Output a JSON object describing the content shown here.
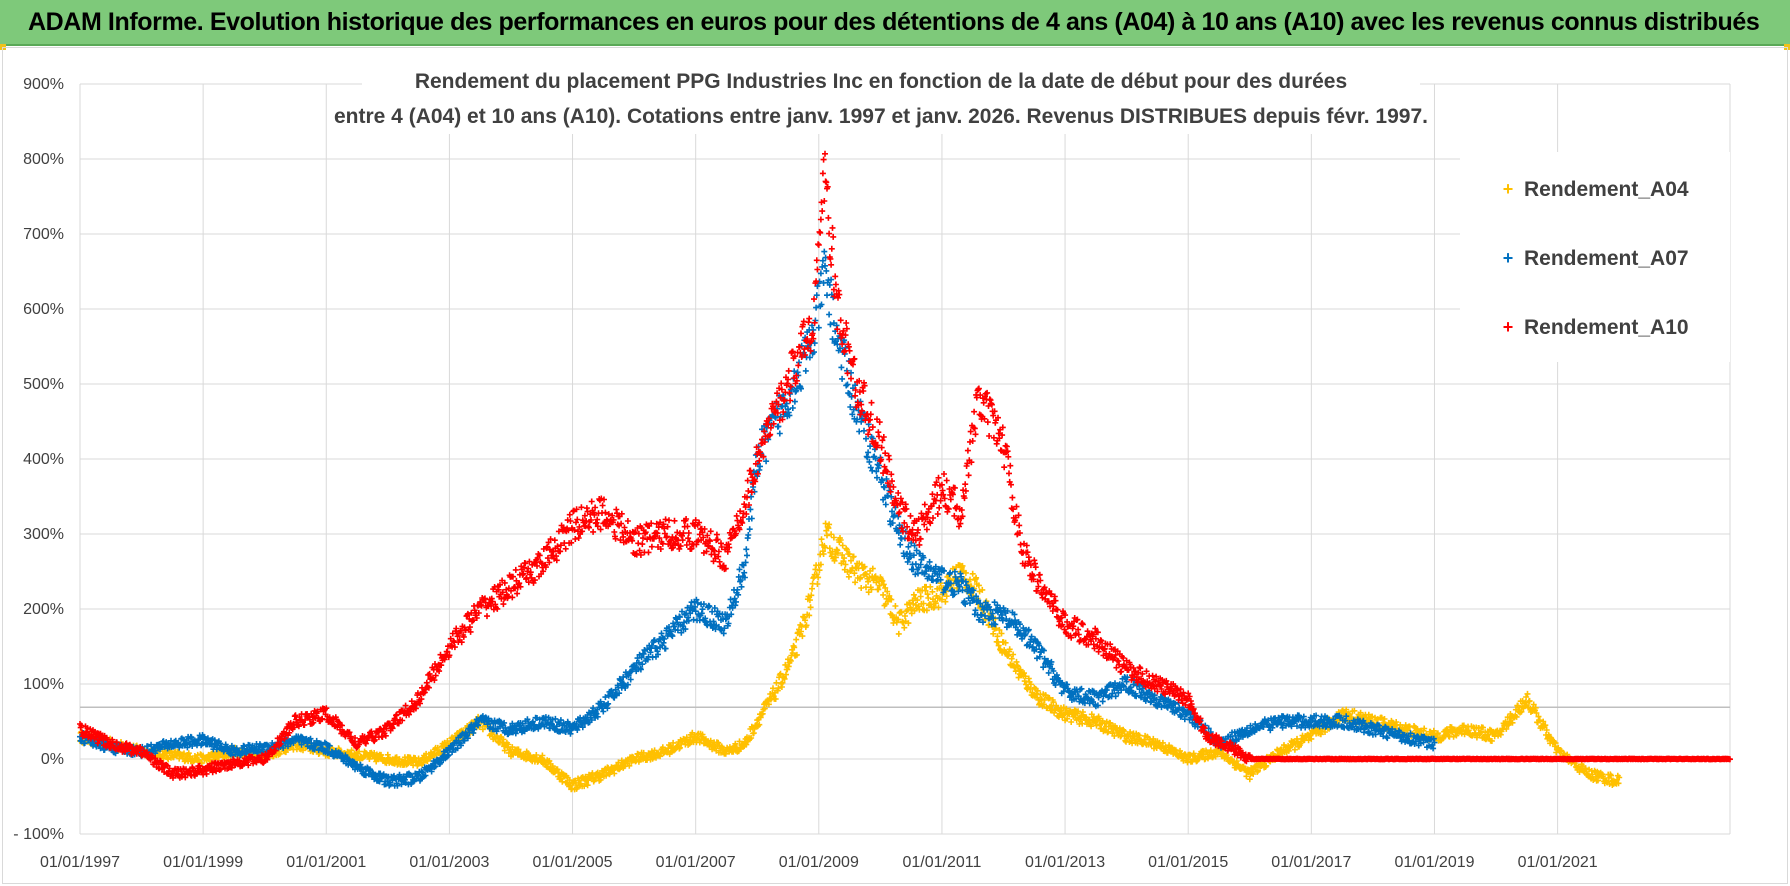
{
  "header": {
    "banner_text": "ADAM Informe. Evolution historique des performances en euros pour des détentions de 4 ans (A04) à 10 ans (A10) avec les revenus connus distribués"
  },
  "chart_data": {
    "type": "scatter",
    "title_lines": [
      "Rendement du placement PPG Industries Inc en fonction de la date de début pour des durées",
      "entre 4 (A04) et 10 ans (A10). Cotations entre janv. 1997 et janv. 2026. Revenus DISTRIBUES depuis févr. 1997."
    ],
    "xlabel": "",
    "ylabel": "",
    "xlim": [
      1997.0,
      2023.8
    ],
    "ylim": [
      -100,
      900
    ],
    "y_ticks": [
      "- 100%",
      "0%",
      "100%",
      "200%",
      "300%",
      "400%",
      "500%",
      "600%",
      "700%",
      "800%",
      "900%"
    ],
    "x_ticks": [
      {
        "year": 1997,
        "label": "01/01/1997"
      },
      {
        "year": 1999,
        "label": "01/01/1999"
      },
      {
        "year": 2001,
        "label": "01/01/2001"
      },
      {
        "year": 2003,
        "label": "01/01/2003"
      },
      {
        "year": 2005,
        "label": "01/01/2005"
      },
      {
        "year": 2007,
        "label": "01/01/2007"
      },
      {
        "year": 2009,
        "label": "01/01/2009"
      },
      {
        "year": 2011,
        "label": "01/01/2011"
      },
      {
        "year": 2013,
        "label": "01/01/2013"
      },
      {
        "year": 2015,
        "label": "01/01/2015"
      },
      {
        "year": 2017,
        "label": "01/01/2017"
      },
      {
        "year": 2019,
        "label": "01/01/2019"
      },
      {
        "year": 2021,
        "label": "01/01/2021"
      }
    ],
    "legend_position": "top-right",
    "series": [
      {
        "name": "Rendement_A04",
        "color": "#ffc000",
        "x": [
          1997.0,
          1997.5,
          1998.0,
          1998.5,
          1999.0,
          1999.5,
          2000.0,
          2000.5,
          2001.0,
          2001.5,
          2002.0,
          2002.5,
          2003.0,
          2003.5,
          2004.0,
          2004.5,
          2005.0,
          2005.5,
          2006.0,
          2006.5,
          2007.0,
          2007.5,
          2007.8,
          2008.0,
          2008.3,
          2008.6,
          2008.9,
          2009.1,
          2009.3,
          2009.6,
          2010.0,
          2010.3,
          2010.6,
          2011.0,
          2011.3,
          2011.6,
          2012.0,
          2012.3,
          2012.6,
          2013.0,
          2013.5,
          2014.0,
          2014.5,
          2015.0,
          2015.5,
          2016.0,
          2016.5,
          2017.0,
          2017.5,
          2018.0,
          2018.5,
          2019.0,
          2019.5,
          2020.0,
          2020.5,
          2021.0,
          2021.5,
          2022.0
        ],
        "values": [
          30,
          20,
          10,
          5,
          0,
          10,
          5,
          20,
          10,
          5,
          0,
          -5,
          20,
          50,
          10,
          0,
          -35,
          -20,
          0,
          10,
          30,
          10,
          20,
          50,
          90,
          140,
          220,
          300,
          280,
          250,
          230,
          180,
          210,
          220,
          250,
          220,
          150,
          110,
          80,
          60,
          50,
          30,
          20,
          0,
          10,
          -20,
          10,
          30,
          60,
          50,
          40,
          30,
          40,
          30,
          80,
          10,
          -20,
          -30
        ]
      },
      {
        "name": "Rendement_A07",
        "color": "#0070c0",
        "x": [
          1997.0,
          1997.5,
          1998.0,
          1998.5,
          1999.0,
          1999.5,
          2000.0,
          2000.5,
          2001.0,
          2001.5,
          2002.0,
          2002.5,
          2003.0,
          2003.5,
          2004.0,
          2004.5,
          2005.0,
          2005.5,
          2006.0,
          2006.5,
          2007.0,
          2007.5,
          2007.8,
          2008.0,
          2008.3,
          2008.6,
          2008.9,
          2009.1,
          2009.3,
          2009.6,
          2010.0,
          2010.3,
          2010.6,
          2011.0,
          2011.3,
          2011.6,
          2012.0,
          2012.3,
          2012.6,
          2013.0,
          2013.5,
          2014.0,
          2014.5,
          2015.0,
          2015.5,
          2016.0,
          2016.5,
          2017.0,
          2017.5,
          2018.0,
          2018.5,
          2019.0
        ],
        "values": [
          30,
          15,
          10,
          20,
          25,
          10,
          15,
          25,
          15,
          -10,
          -30,
          -25,
          10,
          50,
          40,
          50,
          40,
          70,
          120,
          160,
          200,
          180,
          260,
          400,
          450,
          500,
          560,
          650,
          560,
          470,
          380,
          300,
          260,
          240,
          230,
          200,
          190,
          170,
          140,
          90,
          80,
          100,
          80,
          60,
          20,
          40,
          50,
          50,
          50,
          40,
          30,
          20
        ]
      },
      {
        "name": "Rendement_A10",
        "color": "#ff0000",
        "x": [
          1997.0,
          1997.5,
          1998.0,
          1998.5,
          1999.0,
          1999.5,
          2000.0,
          2000.5,
          2001.0,
          2001.5,
          2002.0,
          2002.5,
          2003.0,
          2003.5,
          2004.0,
          2004.5,
          2005.0,
          2005.5,
          2006.0,
          2006.5,
          2007.0,
          2007.5,
          2007.8,
          2008.0,
          2008.3,
          2008.6,
          2008.9,
          2009.1,
          2009.3,
          2009.6,
          2010.0,
          2010.3,
          2010.6,
          2011.0,
          2011.3,
          2011.6,
          2012.0,
          2012.3,
          2012.6,
          2013.0,
          2013.5,
          2014.0,
          2014.5,
          2015.0,
          2015.3,
          2015.6,
          2016.0,
          2016.5,
          2017.0,
          2017.5,
          2018.0,
          2018.5,
          2019.0,
          2019.5,
          2020.0,
          2020.5,
          2021.0,
          2021.5,
          2022.0,
          2022.5,
          2023.0,
          2023.5,
          2023.8
        ],
        "values": [
          40,
          20,
          10,
          -20,
          -15,
          -5,
          0,
          50,
          60,
          20,
          40,
          80,
          150,
          200,
          230,
          260,
          310,
          330,
          290,
          300,
          300,
          270,
          340,
          400,
          460,
          520,
          580,
          780,
          600,
          500,
          420,
          330,
          300,
          360,
          330,
          480,
          420,
          280,
          230,
          180,
          160,
          120,
          100,
          80,
          30,
          20,
          0,
          0,
          0,
          0,
          0,
          0,
          0,
          0,
          0,
          0,
          0,
          0,
          0,
          0,
          0,
          0,
          0
        ]
      }
    ]
  }
}
